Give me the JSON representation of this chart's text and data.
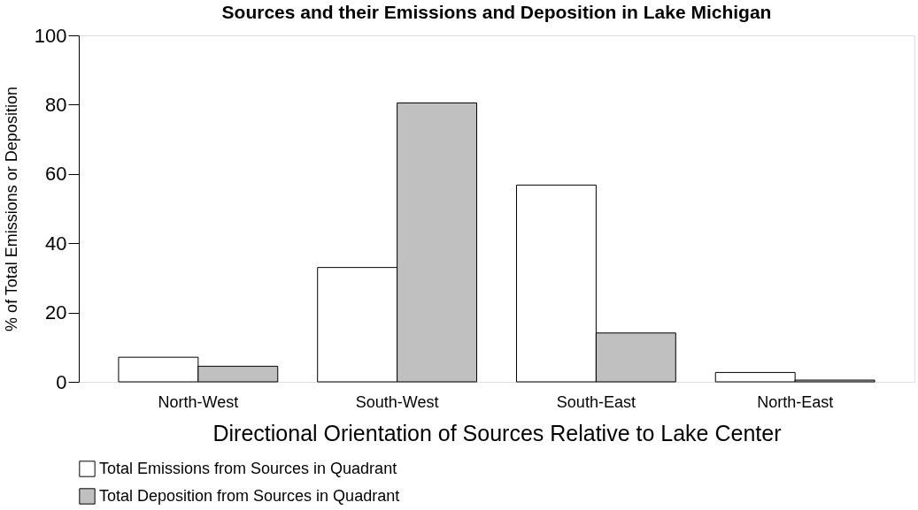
{
  "chart_data": {
    "type": "bar",
    "title": "Sources and their Emissions and Deposition in Lake Michigan",
    "xlabel": "Directional Orientation of Sources Relative to Lake Center",
    "ylabel": "% of Total Emissions or Deposition",
    "categories": [
      "North-West",
      "South-West",
      "South-East",
      "North-East"
    ],
    "series": [
      {
        "name": "Total Emissions from Sources in Quadrant",
        "color": "#ffffff",
        "values": [
          7.1,
          33,
          56.8,
          2.7
        ]
      },
      {
        "name": "Total Deposition from Sources in Quadrant",
        "color": "#c0c0c0",
        "values": [
          4.5,
          80.5,
          14.1,
          0.5
        ]
      }
    ],
    "ylim": [
      0,
      100
    ],
    "yticks": [
      0,
      20,
      40,
      60,
      80,
      100
    ],
    "grid": false,
    "legend": "bottom"
  }
}
